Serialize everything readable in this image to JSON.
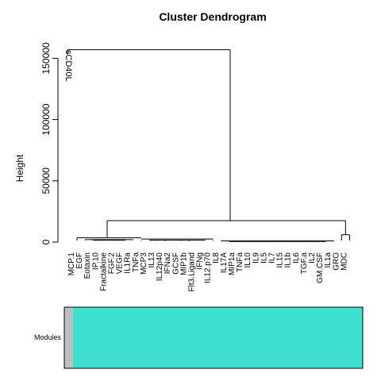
{
  "chart_data": {
    "type": "dendrogram",
    "title": "Cluster Dendrogram",
    "ylabel": "Height",
    "ylim": [
      0,
      160000
    ],
    "y_ticks": [
      0,
      50000,
      100000,
      150000
    ],
    "y_tick_labels": [
      "0",
      "50000",
      "100000",
      "150000"
    ],
    "leaves": [
      "MCP.1",
      "EGF",
      "Eotaxin",
      "IP.10",
      "Fractalkine",
      "FGF.2",
      "VEGF",
      "IL1Ra",
      "TNFa",
      "MCP3",
      "IL13",
      "IL12p40",
      "IFNa2",
      "GCSF",
      "MIP1b",
      "Flt3.Ligand",
      "IFNg",
      "IL12.p70",
      "IL8",
      "IL17A",
      "MIP1a",
      "TNFa",
      "IL10",
      "IL9",
      "IL5",
      "IL7",
      "IL15",
      "IL1b",
      "IL6",
      "TGF.a",
      "IL2",
      "GM.CSF",
      "IL1a",
      "GRO",
      "MDC"
    ],
    "outlier_leaf": "sCD40L",
    "merge_heights": {
      "root": 157000,
      "main": 17500,
      "gro_mdc": 6000,
      "left_group": 3500,
      "mid_group": 2500,
      "right_group": 1000
    },
    "module_bar": {
      "label": "Modules",
      "segments": [
        {
          "name": "grey",
          "color": "#bebebe",
          "leaves": 1
        },
        {
          "name": "turquoise",
          "color": "#40e0d0",
          "leaves": 35
        }
      ]
    }
  }
}
